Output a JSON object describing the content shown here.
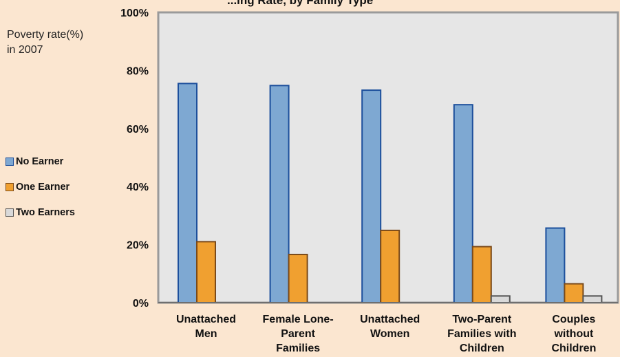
{
  "chart_data": {
    "type": "bar",
    "title": "...ing Rate, by Family Type",
    "ylabel": [
      "Poverty rate(%)",
      "in 2007"
    ],
    "ylim": [
      0,
      100
    ],
    "yticks": [
      "0%",
      "20%",
      "40%",
      "60%",
      "80%",
      "100%"
    ],
    "categories": [
      [
        "Unattached",
        "Men"
      ],
      [
        "Female Lone-",
        "Parent",
        "Families"
      ],
      [
        "Unattached",
        "Women"
      ],
      [
        "Two-Parent",
        "Families with",
        "Children"
      ],
      [
        "Couples",
        "without",
        "Children"
      ]
    ],
    "series": [
      {
        "name": "No Earner",
        "fill": "#7ea8d2",
        "stroke": "#1c4f9c",
        "values": [
          75.5,
          74.8,
          73.2,
          68.2,
          25.7
        ]
      },
      {
        "name": "One Earner",
        "fill": "#f0a030",
        "stroke": "#7a4a1a",
        "values": [
          21.0,
          16.6,
          24.9,
          19.3,
          6.5
        ]
      },
      {
        "name": "Two Earners",
        "fill": "#d9d9d9",
        "stroke": "#555555",
        "values": [
          0,
          0,
          0,
          2.3,
          2.3
        ]
      }
    ],
    "grid": false,
    "legend_position": "left"
  }
}
